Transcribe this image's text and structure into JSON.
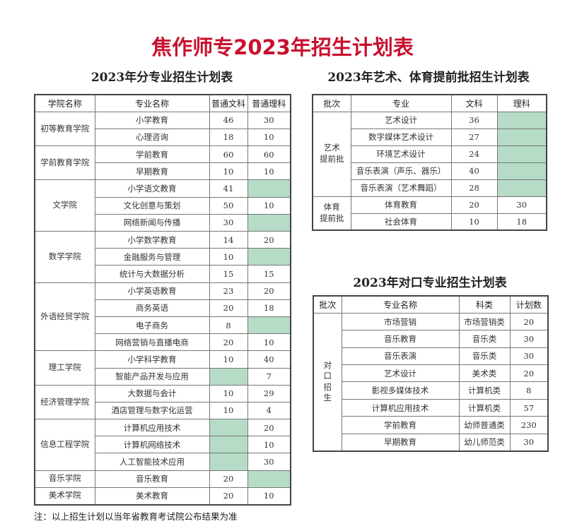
{
  "title": "焦作师专2023年招生计划表",
  "major_plan": {
    "subtitle": "2023年分专业招生计划表",
    "headers": [
      "学院名称",
      "专业名称",
      "普通文科",
      "普通理科"
    ],
    "groups": [
      {
        "college": "初等教育学院",
        "rows": [
          [
            "小学教育",
            "46",
            "30"
          ],
          [
            "心理咨询",
            "18",
            "10"
          ]
        ]
      },
      {
        "college": "学前教育学院",
        "rows": [
          [
            "学前教育",
            "60",
            "60"
          ],
          [
            "早期教育",
            "10",
            "10"
          ]
        ]
      },
      {
        "college": "文学院",
        "rows": [
          [
            "小学语文教育",
            "41",
            ""
          ],
          [
            "文化创意与策划",
            "50",
            "10"
          ],
          [
            "网络新闻与传播",
            "30",
            ""
          ]
        ]
      },
      {
        "college": "数学学院",
        "rows": [
          [
            "小学数学教育",
            "14",
            "20"
          ],
          [
            "金融服务与管理",
            "10",
            ""
          ],
          [
            "统计与大数据分析",
            "15",
            "15"
          ]
        ]
      },
      {
        "college": "外语经贸学院",
        "rows": [
          [
            "小学英语教育",
            "23",
            "20"
          ],
          [
            "商务英语",
            "20",
            "18"
          ],
          [
            "电子商务",
            "8",
            ""
          ],
          [
            "网络营销与直播电商",
            "20",
            "10"
          ]
        ]
      },
      {
        "college": "理工学院",
        "rows": [
          [
            "小学科学教育",
            "10",
            "40"
          ],
          [
            "智能产品开发与应用",
            "",
            "7"
          ]
        ]
      },
      {
        "college": "经济管理学院",
        "rows": [
          [
            "大数据与会计",
            "10",
            "29"
          ],
          [
            "酒店管理与数字化运营",
            "10",
            "4"
          ]
        ]
      },
      {
        "college": "信息工程学院",
        "rows": [
          [
            "计算机应用技术",
            "",
            "20"
          ],
          [
            "计算机网络技术",
            "",
            "10"
          ],
          [
            "人工智能技术应用",
            "",
            "30"
          ]
        ]
      },
      {
        "college": "音乐学院",
        "rows": [
          [
            "音乐教育",
            "20",
            ""
          ]
        ]
      },
      {
        "college": "美术学院",
        "rows": [
          [
            "美术教育",
            "20",
            "10"
          ]
        ]
      }
    ]
  },
  "art_sports_plan": {
    "subtitle": "2023年艺术、体育提前批招生计划表",
    "headers": [
      "批次",
      "专业",
      "文科",
      "理科"
    ],
    "groups": [
      {
        "college": "艺术\n提前批",
        "rows": [
          [
            "艺术设计",
            "36",
            ""
          ],
          [
            "数字媒体艺术设计",
            "27",
            ""
          ],
          [
            "环境艺术设计",
            "24",
            ""
          ],
          [
            "音乐表演（声乐、器乐）",
            "40",
            ""
          ],
          [
            "音乐表演（艺术舞蹈）",
            "28",
            ""
          ]
        ]
      },
      {
        "college": "体育\n提前批",
        "rows": [
          [
            "体育教育",
            "20",
            "30"
          ],
          [
            "社会体育",
            "10",
            "18"
          ]
        ]
      }
    ]
  },
  "vocational_plan": {
    "subtitle": "2023年对口专业招生计划表",
    "headers": [
      "批次",
      "专业名称",
      "科类",
      "计划数"
    ],
    "groups": [
      {
        "college": "对\n口\n招\n生",
        "rows": [
          [
            "市场营销",
            "市场营销类",
            "20"
          ],
          [
            "音乐教育",
            "音乐类",
            "30"
          ],
          [
            "音乐表演",
            "音乐类",
            "30"
          ],
          [
            "艺术设计",
            "美术类",
            "20"
          ],
          [
            "影视多媒体技术",
            "计算机类",
            "8"
          ],
          [
            "计算机应用技术",
            "计算机类",
            "57"
          ],
          [
            "学前教育",
            "幼师普通类",
            "230"
          ],
          [
            "早期教育",
            "幼儿师范类",
            "30"
          ]
        ]
      }
    ]
  },
  "note": "注：以上招生计划以当年省教育考试院公布结果为准",
  "colors": {
    "title": "#c8102e",
    "empty_cell_fill": "#b6dcc7"
  }
}
